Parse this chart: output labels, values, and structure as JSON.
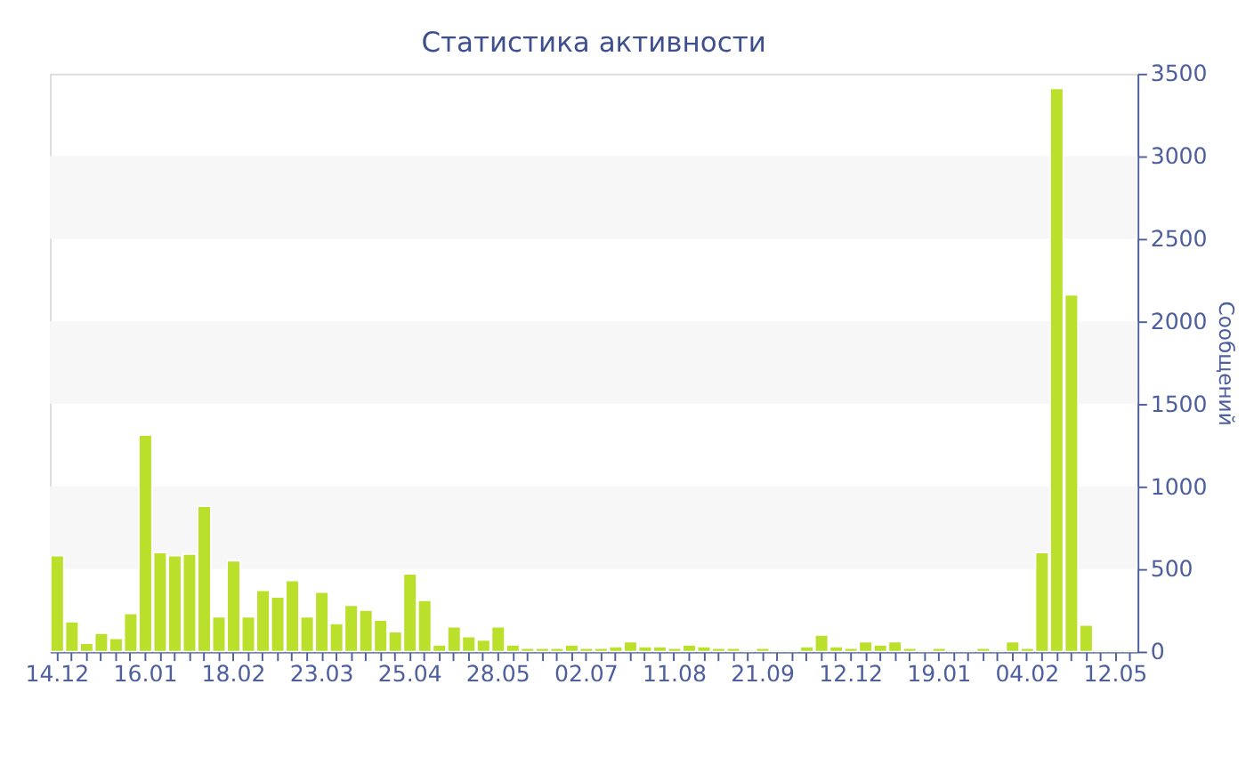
{
  "chart_data": {
    "type": "bar",
    "title": "Статистика активности",
    "ylabel": "Сообщений",
    "categories": [
      "14.12",
      null,
      null,
      null,
      null,
      null,
      "16.01",
      null,
      null,
      null,
      null,
      null,
      "18.02",
      null,
      null,
      null,
      null,
      null,
      "23.03",
      null,
      null,
      null,
      null,
      null,
      "25.04",
      null,
      null,
      null,
      null,
      null,
      "28.05",
      null,
      null,
      null,
      null,
      null,
      "02.07",
      null,
      null,
      null,
      null,
      null,
      "11.08",
      null,
      null,
      null,
      null,
      null,
      "21.09",
      null,
      null,
      null,
      null,
      null,
      "12.12",
      null,
      null,
      null,
      null,
      null,
      "19.01",
      null,
      null,
      null,
      null,
      null,
      "04.02",
      null,
      null,
      null,
      null,
      null,
      "12.05",
      null
    ],
    "series": [
      {
        "color": "#bbe02c",
        "values": [
          580,
          180,
          50,
          110,
          80,
          230,
          1310,
          600,
          580,
          590,
          880,
          210,
          550,
          210,
          370,
          330,
          430,
          210,
          360,
          170,
          280,
          250,
          190,
          120,
          470,
          310,
          40,
          150,
          90,
          70,
          150,
          40,
          20,
          20,
          20,
          40,
          20,
          20,
          30,
          60,
          30,
          30,
          20,
          40,
          30,
          20,
          20,
          10,
          20,
          10,
          10,
          30,
          100,
          30,
          20,
          60,
          40,
          60,
          20,
          10,
          20,
          10,
          10,
          20,
          10,
          60,
          20,
          600,
          3410,
          2160,
          160,
          10,
          10,
          10
        ]
      }
    ],
    "ylim": [
      0,
      3500
    ],
    "yticks": [
      0,
      500,
      1000,
      1500,
      2000,
      2500,
      3000,
      3500
    ],
    "bands": [
      {
        "axis": "y",
        "from": 500,
        "to": 1000,
        "color": "#f7f7f7"
      },
      {
        "axis": "y",
        "from": 1500,
        "to": 2000,
        "color": "#f7f7f7"
      },
      {
        "axis": "y",
        "from": 2500,
        "to": 3000,
        "color": "#f7f7f7"
      }
    ],
    "grid": false
  }
}
